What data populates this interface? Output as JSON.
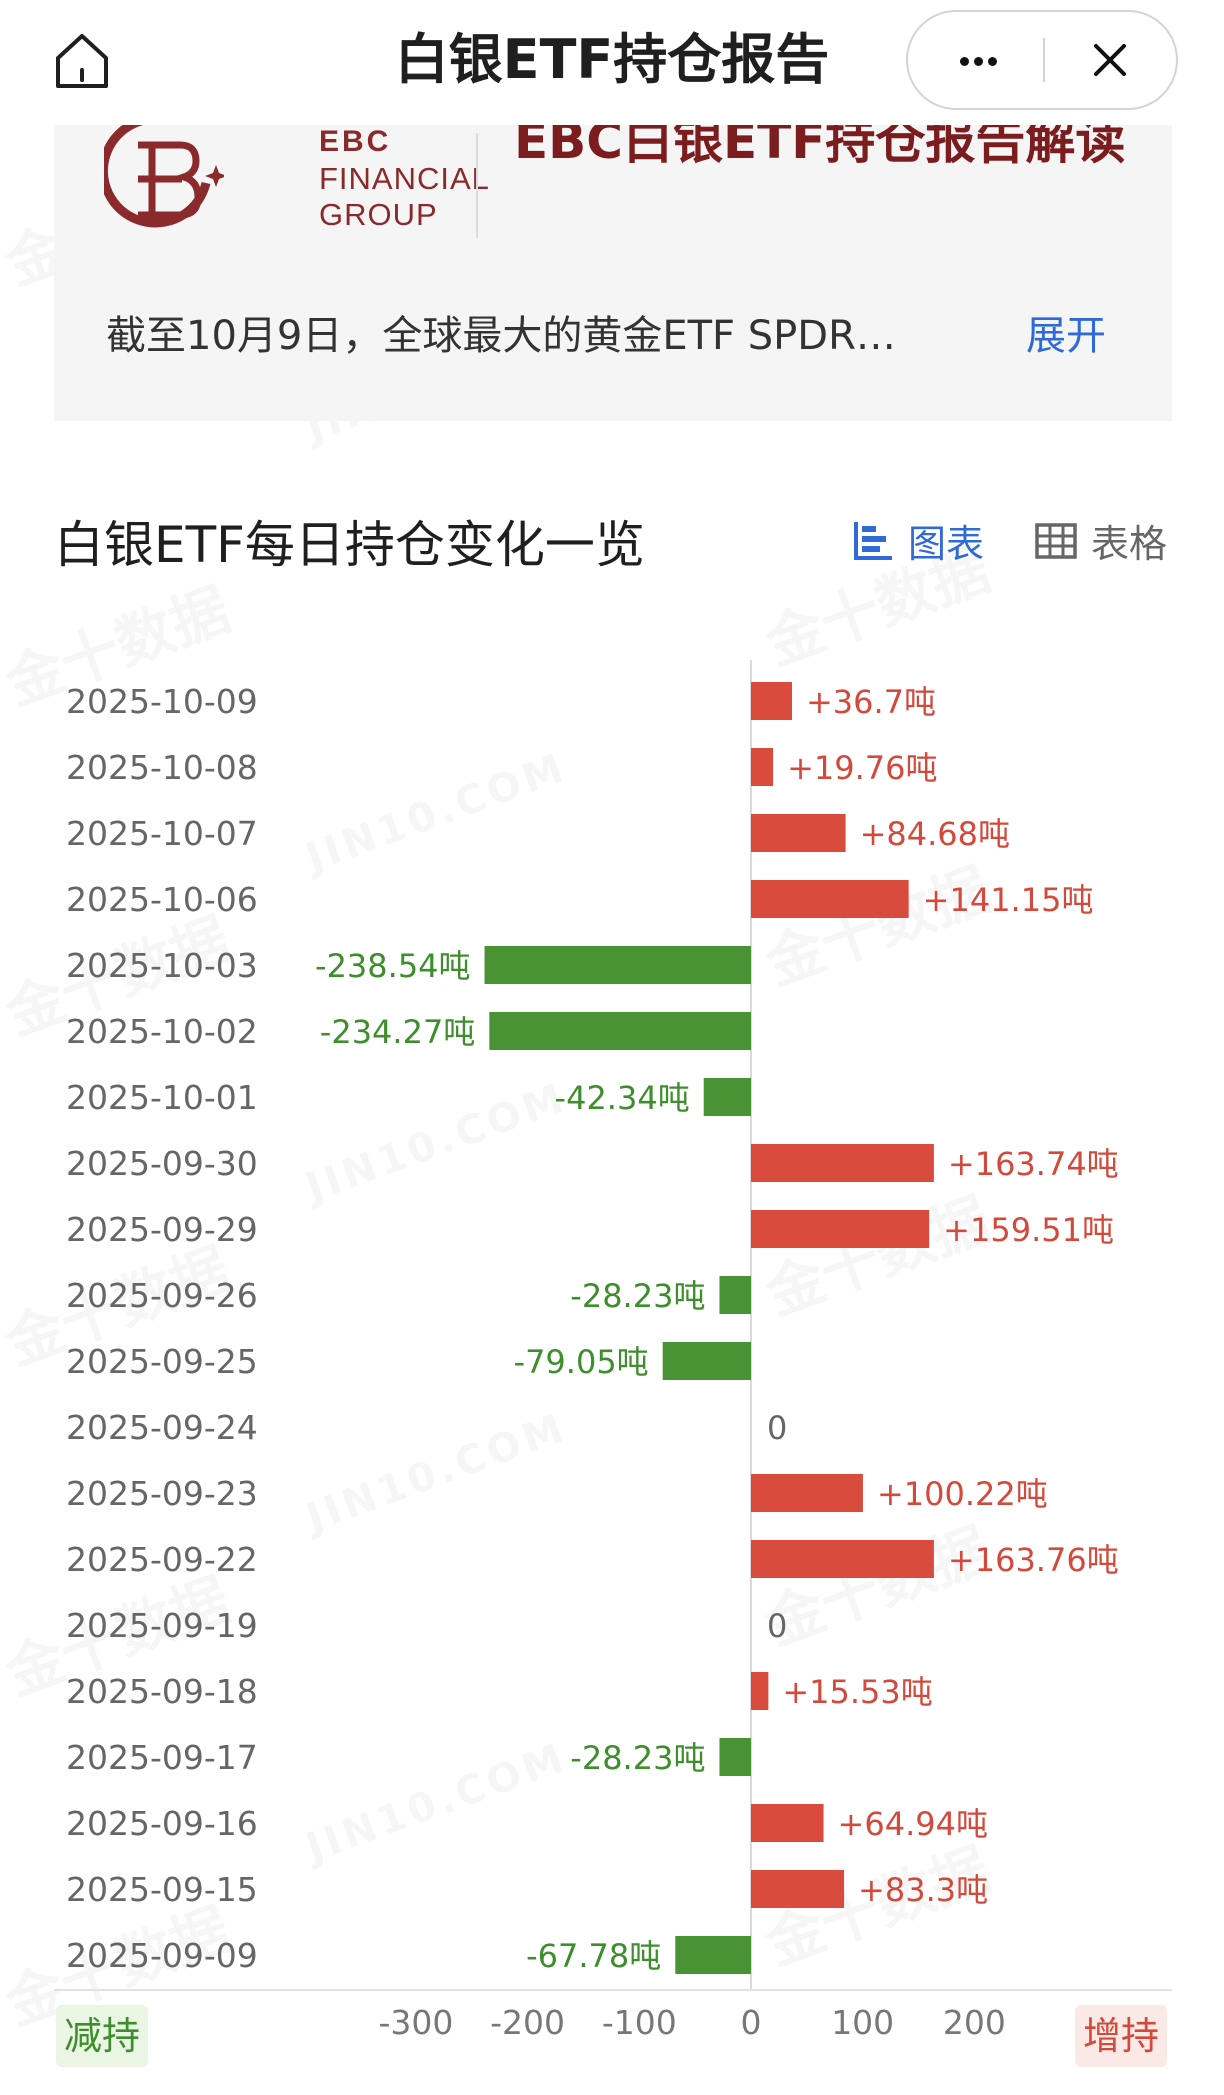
{
  "header": {
    "title": "白银ETF持仓报告",
    "home_icon": "home-icon",
    "more_icon": "more-icon",
    "close_icon": "close-icon"
  },
  "report_card": {
    "logo": {
      "line1": "EBC",
      "line2": "FINANCIAL",
      "line3": "GROUP",
      "brand_color": "#8b2a2c"
    },
    "title": "EBC白银ETF持仓报告解读",
    "summary": "截至10月9日，全球最大的黄金ETF SPDR…",
    "expand_label": "展开"
  },
  "section": {
    "title": "白银ETF每日持仓变化一览",
    "view_chart_label": "图表",
    "view_table_label": "表格"
  },
  "chart_data": {
    "type": "bar",
    "orientation": "horizontal",
    "unit": "吨",
    "categories": [
      "2025-10-09",
      "2025-10-08",
      "2025-10-07",
      "2025-10-06",
      "2025-10-03",
      "2025-10-02",
      "2025-10-01",
      "2025-09-30",
      "2025-09-29",
      "2025-09-26",
      "2025-09-25",
      "2025-09-24",
      "2025-09-23",
      "2025-09-22",
      "2025-09-19",
      "2025-09-18",
      "2025-09-17",
      "2025-09-16",
      "2025-09-15",
      "2025-09-09"
    ],
    "values": [
      36.7,
      19.76,
      84.68,
      141.15,
      -238.54,
      -234.27,
      -42.34,
      163.74,
      159.51,
      -28.23,
      -79.05,
      0,
      100.22,
      163.76,
      0,
      15.53,
      -28.23,
      64.94,
      83.3,
      -67.78
    ],
    "value_labels": [
      "+36.7吨",
      "+19.76吨",
      "+84.68吨",
      "+141.15吨",
      "-238.54吨",
      "-234.27吨",
      "-42.34吨",
      "+163.74吨",
      "+159.51吨",
      "-28.23吨",
      "-79.05吨",
      "0",
      "+100.22吨",
      "+163.76吨",
      "0",
      "+15.53吨",
      "-28.23吨",
      "+64.94吨",
      "+83.3吨",
      "-67.78吨"
    ],
    "x_ticks": [
      "-300",
      "-200",
      "-100",
      "0",
      "100",
      "200"
    ],
    "xlim": [
      -300,
      200
    ],
    "legend": {
      "negative": "减持",
      "positive": "增持"
    },
    "colors": {
      "positive": "#d94c3d",
      "negative": "#4a9334",
      "positive_text": "#d34a3c",
      "negative_text": "#3f8e2e",
      "zero_text": "#666666"
    }
  }
}
